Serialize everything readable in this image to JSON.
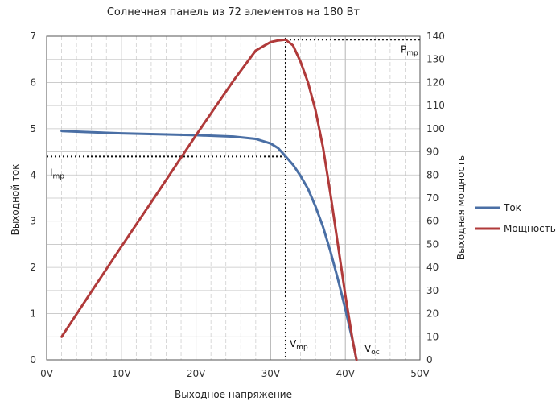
{
  "chart_data": {
    "type": "line",
    "title": "Солнечная панель из 72 элементов на 180 Вт",
    "xlabel": "Выходное напряжение",
    "ylabel_left": "Выходной ток",
    "ylabel_right": "Выходная мощность",
    "x_tick_labels": [
      "0V",
      "10V",
      "20V",
      "30V",
      "40V",
      "50V"
    ],
    "xlim": [
      0,
      50
    ],
    "ylim_left": [
      0,
      7
    ],
    "ylim_right": [
      0,
      140
    ],
    "grid": true,
    "legend_position": "right",
    "series": [
      {
        "name": "Ток",
        "axis": "left",
        "color": "#4a6fa5",
        "x": [
          2,
          5,
          10,
          15,
          20,
          25,
          28,
          30,
          31,
          32,
          33,
          34,
          35,
          36,
          37,
          38,
          39,
          40,
          41,
          41.5
        ],
        "y": [
          4.95,
          4.93,
          4.9,
          4.88,
          4.86,
          4.83,
          4.78,
          4.68,
          4.58,
          4.4,
          4.22,
          3.98,
          3.7,
          3.32,
          2.88,
          2.35,
          1.75,
          1.1,
          0.4,
          0.0
        ]
      },
      {
        "name": "Мощность",
        "axis": "right",
        "color": "#b03a3a",
        "x": [
          2,
          5,
          10,
          15,
          20,
          25,
          28,
          30,
          31,
          32,
          33,
          34,
          35,
          36,
          37,
          38,
          39,
          40,
          41,
          41.5
        ],
        "y": [
          10,
          24.7,
          49,
          73,
          97.2,
          120.7,
          133.8,
          137.5,
          138.2,
          138.5,
          136,
          129,
          120,
          108,
          92,
          72,
          50,
          28,
          8,
          0
        ]
      }
    ],
    "annotations": {
      "pmp": {
        "main": "P",
        "sub": "mp"
      },
      "imp": {
        "main": "I",
        "sub": "mp"
      },
      "vmp": {
        "main": "V",
        "sub": "mp"
      },
      "voc": {
        "main": "V",
        "sub": "oc"
      }
    },
    "mpp": {
      "voltage": 32,
      "current": 4.4,
      "power": 138.5
    }
  }
}
